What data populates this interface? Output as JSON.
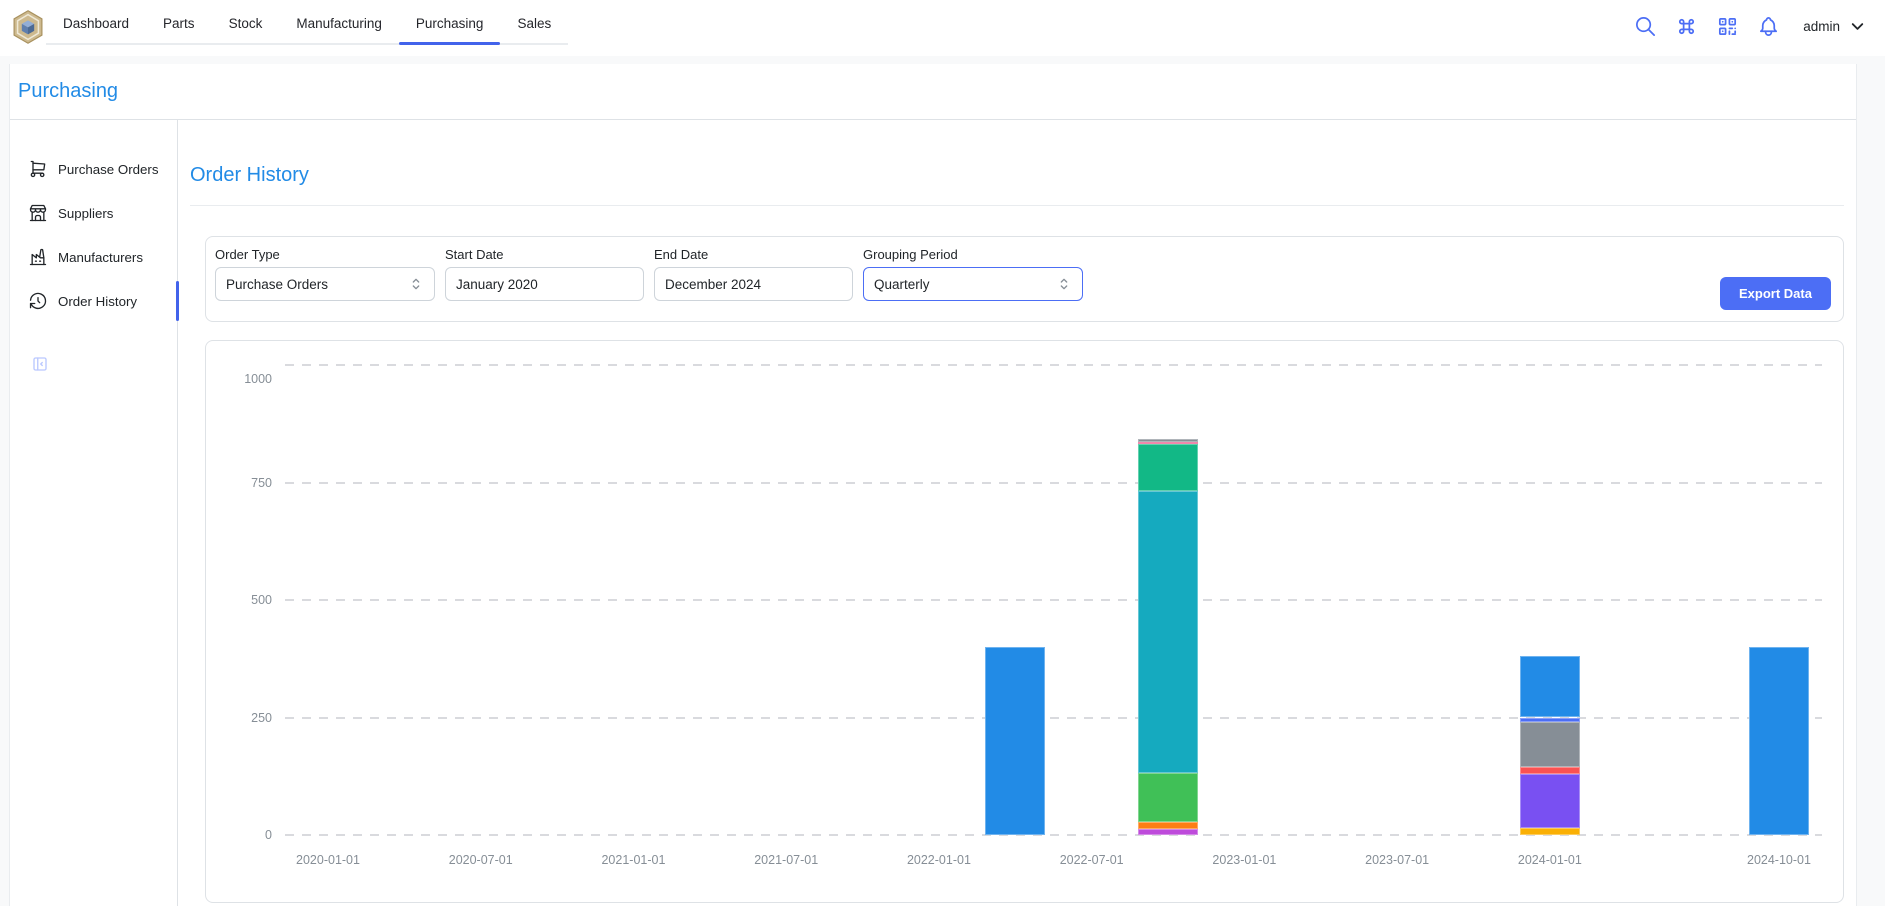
{
  "topnav": {
    "tabs": [
      {
        "label": "Dashboard",
        "active": false
      },
      {
        "label": "Parts",
        "active": false
      },
      {
        "label": "Stock",
        "active": false
      },
      {
        "label": "Manufacturing",
        "active": false
      },
      {
        "label": "Purchasing",
        "active": true
      },
      {
        "label": "Sales",
        "active": false
      }
    ],
    "action_icons": [
      "search-icon",
      "command-icon",
      "qrcode-icon",
      "bell-icon"
    ],
    "user": {
      "name": "admin"
    }
  },
  "page_header": {
    "title": "Purchasing"
  },
  "sidebar": {
    "items": [
      {
        "label": "Purchase Orders",
        "icon": "shopping-cart-icon",
        "active": false
      },
      {
        "label": "Suppliers",
        "icon": "building-store-icon",
        "active": false
      },
      {
        "label": "Manufacturers",
        "icon": "factory-icon",
        "active": false
      },
      {
        "label": "Order History",
        "icon": "history-icon",
        "active": true
      }
    ],
    "collapse_icon": "sidebar-collapse-icon"
  },
  "main": {
    "title": "Order History",
    "filters": {
      "order_type": {
        "label": "Order Type",
        "value": "Purchase Orders",
        "type": "select"
      },
      "start_date": {
        "label": "Start Date",
        "value": "January 2020",
        "type": "input"
      },
      "end_date": {
        "label": "End Date",
        "value": "December 2024",
        "type": "input"
      },
      "grouping_period": {
        "label": "Grouping Period",
        "value": "Quarterly",
        "type": "select",
        "focused": true
      }
    },
    "export_button": "Export Data"
  },
  "colors": {
    "accent_blue": "#228be6",
    "primary_indigo": "#4c6ef5",
    "active_underline": "#4263eb",
    "border": "#dee2e6",
    "axis_label": "#868e96"
  },
  "chart_data": {
    "type": "bar",
    "stacked": true,
    "grid": true,
    "legend": null,
    "title": "",
    "x_axis": {
      "type": "time",
      "tick_labels": [
        "2020-01-01",
        "2020-07-01",
        "2021-01-01",
        "2021-07-01",
        "2022-01-01",
        "2022-07-01",
        "2023-01-01",
        "2023-07-01",
        "2024-01-01",
        "2024-10-01"
      ]
    },
    "y_axis": {
      "ticks": [
        0,
        250,
        500,
        750,
        1000
      ],
      "range": [
        0,
        1000
      ]
    },
    "segment_order": "bottom-to-top",
    "bars": [
      {
        "date": "2022-04-01",
        "total": 400,
        "segments": [
          {
            "color": "#228be6",
            "value": 400
          }
        ]
      },
      {
        "date": "2022-10-01",
        "total": 842,
        "segments": [
          {
            "color": "#be4bdb",
            "value": 12
          },
          {
            "color": "#fd7e14",
            "value": 15
          },
          {
            "color": "#40c057",
            "value": 105
          },
          {
            "color": "#15aabf",
            "value": 600
          },
          {
            "color": "#12b886",
            "value": 100
          },
          {
            "color": "#e64980",
            "value": 5
          },
          {
            "color": "#868e96",
            "value": 5
          }
        ]
      },
      {
        "date": "2024-01-01",
        "total": 380,
        "segments": [
          {
            "color": "#fab005",
            "value": 15
          },
          {
            "color": "#7950f2",
            "value": 115
          },
          {
            "color": "#fa5252",
            "value": 15
          },
          {
            "color": "#868e96",
            "value": 95
          },
          {
            "color": "#4c6ef5",
            "value": 10
          },
          {
            "color": "#228be6",
            "value": 130
          }
        ]
      },
      {
        "date": "2024-10-01",
        "total": 400,
        "segments": [
          {
            "color": "#228be6",
            "value": 400
          }
        ]
      }
    ]
  }
}
